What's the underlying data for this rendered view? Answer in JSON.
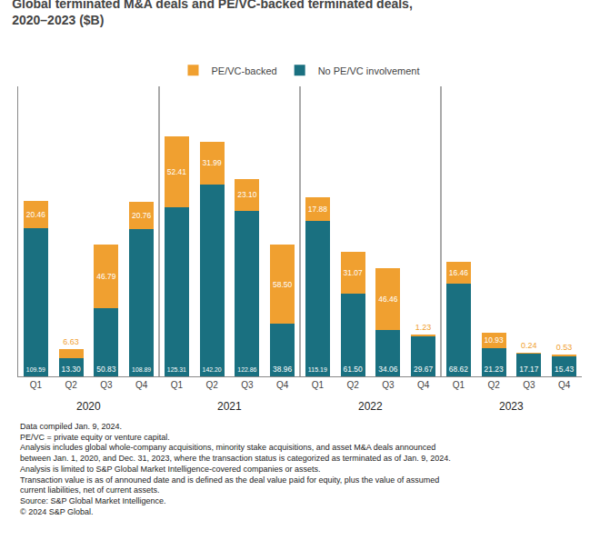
{
  "chart_data": {
    "type": "bar",
    "title": "Global terminated M&A deals and PE/VC-backed terminated deals,",
    "subtitle": "2020–2023 ($B)",
    "categories": [
      "Q1",
      "Q2",
      "Q3",
      "Q4",
      "Q1",
      "Q2",
      "Q3",
      "Q4",
      "Q1",
      "Q2",
      "Q3",
      "Q4",
      "Q1",
      "Q2",
      "Q3",
      "Q4"
    ],
    "groups": [
      "2020",
      "2021",
      "2022",
      "2023"
    ],
    "series": [
      {
        "name": "No PE/VC involvement",
        "color": "#1a7080",
        "values": [
          109.59,
          13.3,
          50.83,
          108.89,
          125.31,
          142.2,
          122.86,
          38.96,
          115.19,
          61.5,
          34.06,
          29.67,
          68.62,
          21.23,
          17.17,
          15.43
        ],
        "value_labels": [
          "109.59",
          "13.30",
          "50.83",
          "108.89",
          "125.31",
          "142.20",
          "122.86",
          "38.96",
          "115.19",
          "61.50",
          "34.06",
          "29.67",
          "68.62",
          "21.23",
          "17.17",
          "15.43"
        ]
      },
      {
        "name": "PE/VC-backed",
        "color": "#f0a030",
        "values": [
          20.46,
          6.63,
          46.79,
          20.76,
          52.41,
          31.99,
          23.1,
          58.5,
          17.88,
          31.07,
          46.46,
          1.23,
          16.46,
          10.93,
          0.24,
          0.53
        ],
        "value_labels": [
          "20.46",
          "6.63",
          "46.79",
          "20.76",
          "52.41",
          "31.99",
          "23.10",
          "58.50",
          "17.88",
          "31.07",
          "46.46",
          "1.23",
          "16.46",
          "10.93",
          "0.24",
          "0.53"
        ]
      }
    ],
    "ylim": [
      0,
      215
    ],
    "yticks": [],
    "stacked": true,
    "data_labels": true,
    "tick_labels": "x",
    "grid": false,
    "legend": "top",
    "annotations": [
      "Data compiled Jan. 9, 2024.",
      "PE/VC = private equity or venture capital.",
      "Analysis includes global whole-company acquisitions, minority stake acquisitions, and asset M&A deals announced between Jan. 1, 2020, and Dec. 31, 2023, where the transaction status is categorized as terminated as of Jan. 9, 2024.",
      "Analysis is limited to S&P Global Market Intelligence-covered companies or assets.",
      "Transaction value is as of announed date and is defined as the deal value paid for equity, plus the value of assumed current liabilities, net of current assets.",
      "Source: S&P Global Market Intelligence.",
      "© 2024 S&P Global."
    ]
  }
}
